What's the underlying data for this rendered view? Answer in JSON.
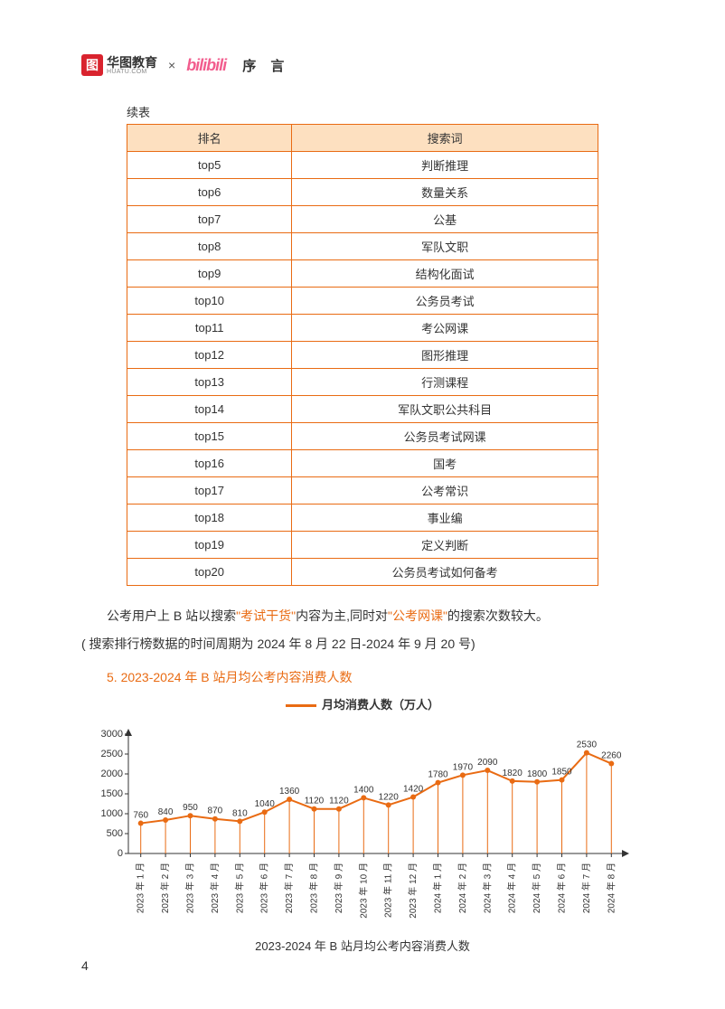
{
  "header": {
    "huatu_cn": "华图教育",
    "huatu_en": "HUATU.COM",
    "huatu_icon": "图",
    "times": "×",
    "bili": "bilibili",
    "section": "序 言"
  },
  "table": {
    "caption": "续表",
    "col_rank": "排名",
    "col_term": "搜索词",
    "rows": [
      {
        "rank": "top5",
        "term": "判断推理"
      },
      {
        "rank": "top6",
        "term": "数量关系"
      },
      {
        "rank": "top7",
        "term": "公基"
      },
      {
        "rank": "top8",
        "term": "军队文职"
      },
      {
        "rank": "top9",
        "term": "结构化面试"
      },
      {
        "rank": "top10",
        "term": "公务员考试"
      },
      {
        "rank": "top11",
        "term": "考公网课"
      },
      {
        "rank": "top12",
        "term": "图形推理"
      },
      {
        "rank": "top13",
        "term": "行测课程"
      },
      {
        "rank": "top14",
        "term": "军队文职公共科目"
      },
      {
        "rank": "top15",
        "term": "公务员考试网课"
      },
      {
        "rank": "top16",
        "term": "国考"
      },
      {
        "rank": "top17",
        "term": "公考常识"
      },
      {
        "rank": "top18",
        "term": "事业编"
      },
      {
        "rank": "top19",
        "term": "定义判断"
      },
      {
        "rank": "top20",
        "term": "公务员考试如何备考"
      }
    ]
  },
  "para1_a": "公考用户上 B 站以搜索",
  "para1_hl1": "\"考试干货\"",
  "para1_b": "内容为主,同时对",
  "para1_hl2": "\"公考网课\"",
  "para1_c": "的搜索次数较大。",
  "para2": "( 搜索排行榜数据的时间周期为 2024 年 8 月 22 日-2024 年 9 月 20 号)",
  "heading5": "5. 2023-2024 年 B 站月均公考内容消费人数",
  "chart": {
    "legend": "月均消费人数（万人）",
    "caption": "2023-2024 年 B 站月均公考内容消费人数",
    "type": "line",
    "line_color": "#e96b13",
    "marker_color": "#e96b13",
    "marker_size": 3,
    "line_width": 2,
    "drop_line_color": "#e96b13",
    "drop_line_width": 1,
    "axis_color": "#333333",
    "background_color": "#ffffff",
    "label_fontsize": 10,
    "ylim": [
      0,
      3000
    ],
    "ytick_step": 500,
    "yticks": [
      0,
      500,
      1000,
      1500,
      2000,
      2500,
      3000
    ],
    "categories": [
      "2023 年 1 月",
      "2023 年 2 月",
      "2023 年 3 月",
      "2023 年 4 月",
      "2023 年 5 月",
      "2023 年 6 月",
      "2023 年 7 月",
      "2023 年 8 月",
      "2023 年 9 月",
      "2023 年 10 月",
      "2023 年 11 月",
      "2023 年 12 月",
      "2024 年 1 月",
      "2024 年 2 月",
      "2024 年 3 月",
      "2024 年 4 月",
      "2024 年 5 月",
      "2024 年 6 月",
      "2024 年 7 月",
      "2024 年 8 月"
    ],
    "values": [
      760,
      840,
      950,
      870,
      810,
      1040,
      1360,
      1120,
      1120,
      1400,
      1220,
      1420,
      1780,
      1970,
      2090,
      1820,
      1800,
      1850,
      2530,
      2260
    ]
  },
  "page_number": "4"
}
